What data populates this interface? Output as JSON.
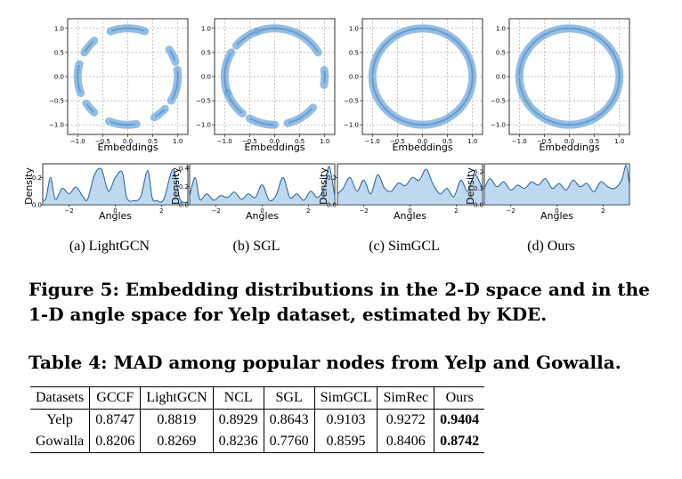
{
  "figure": {
    "caption": "Figure 5: Embedding distributions in the 2-D space and in the 1-D angle space for Yelp dataset, estimated by KDE.",
    "scatter_xlabel": "Embeddings",
    "density_xlabel": "Angles",
    "density_ylabel": "Density",
    "scatter_xticks": [
      "−1.0",
      "−0.5",
      "0.0",
      "0.5",
      "1.0"
    ],
    "scatter_yticks": [
      "1.0",
      "0.5",
      "0.0",
      "−0.5",
      "−1.0"
    ],
    "density_xticks": [
      "−2",
      "0",
      "2"
    ],
    "colors": {
      "fill": "#6fa8dc",
      "line": "#1f5f9f",
      "dense": "#1c3f6e"
    }
  },
  "chart_data": [
    {
      "type": "scatter",
      "subplot": "a",
      "caption": "(a) LightGCN",
      "xlim": [
        -1.2,
        1.2
      ],
      "ylim": [
        -1.2,
        1.2
      ],
      "arcs": [
        [
          70,
          110
        ],
        [
          18,
          34
        ],
        [
          -30,
          8
        ],
        [
          -58,
          -42
        ],
        [
          -112,
          -80
        ],
        [
          -146,
          -132
        ],
        [
          165,
          200
        ],
        [
          132,
          150
        ]
      ],
      "density_yticks": [
        "0.0",
        "0.2"
      ],
      "density_ylim": [
        0,
        0.3
      ],
      "density": [
        [
          -3.14,
          0.03
        ],
        [
          -3.0,
          0.05
        ],
        [
          -2.8,
          0.2
        ],
        [
          -2.6,
          0.04
        ],
        [
          -2.3,
          0.12
        ],
        [
          -2.0,
          0.08
        ],
        [
          -1.7,
          0.13
        ],
        [
          -1.4,
          0.06
        ],
        [
          -1.2,
          0.04
        ],
        [
          -0.9,
          0.22
        ],
        [
          -0.6,
          0.26
        ],
        [
          -0.3,
          0.1
        ],
        [
          0.0,
          0.2
        ],
        [
          0.3,
          0.24
        ],
        [
          0.5,
          0.05
        ],
        [
          0.8,
          0.03
        ],
        [
          1.1,
          0.06
        ],
        [
          1.4,
          0.25
        ],
        [
          1.6,
          0.05
        ],
        [
          1.8,
          0.03
        ],
        [
          2.1,
          0.04
        ],
        [
          2.5,
          0.26
        ],
        [
          2.8,
          0.04
        ],
        [
          3.14,
          0.02
        ]
      ]
    },
    {
      "type": "scatter",
      "subplot": "b",
      "caption": "(b) SGL",
      "xlim": [
        -1.2,
        1.2
      ],
      "ylim": [
        -1.2,
        1.2
      ],
      "arcs": [
        [
          30,
          110
        ],
        [
          -10,
          8
        ],
        [
          -75,
          -40
        ],
        [
          -120,
          -90
        ],
        [
          -160,
          -130
        ],
        [
          150,
          200
        ],
        [
          112,
          140
        ]
      ],
      "density_yticks": [
        "0.0",
        "0.2",
        "0.4"
      ],
      "density_ylim": [
        0,
        0.45
      ],
      "density": [
        [
          -3.14,
          0.1
        ],
        [
          -2.9,
          0.3
        ],
        [
          -2.7,
          0.06
        ],
        [
          -2.4,
          0.12
        ],
        [
          -2.1,
          0.05
        ],
        [
          -1.8,
          0.1
        ],
        [
          -1.5,
          0.08
        ],
        [
          -1.2,
          0.14
        ],
        [
          -0.9,
          0.06
        ],
        [
          -0.6,
          0.12
        ],
        [
          -0.3,
          0.08
        ],
        [
          0.0,
          0.22
        ],
        [
          0.3,
          0.05
        ],
        [
          0.6,
          0.1
        ],
        [
          0.9,
          0.3
        ],
        [
          1.2,
          0.08
        ],
        [
          1.5,
          0.12
        ],
        [
          1.8,
          0.05
        ],
        [
          2.1,
          0.15
        ],
        [
          2.4,
          0.08
        ],
        [
          2.7,
          0.2
        ],
        [
          2.9,
          0.42
        ],
        [
          3.14,
          0.1
        ]
      ]
    },
    {
      "type": "scatter",
      "subplot": "c",
      "caption": "(c) SimGCL",
      "xlim": [
        -1.2,
        1.2
      ],
      "ylim": [
        -1.2,
        1.2
      ],
      "arcs": [
        [
          -180,
          180
        ]
      ],
      "density_yticks": [
        "0.0",
        "0.2"
      ],
      "density_ylim": [
        0,
        0.3
      ],
      "density": [
        [
          -3.14,
          0.08
        ],
        [
          -2.9,
          0.12
        ],
        [
          -2.6,
          0.2
        ],
        [
          -2.3,
          0.1
        ],
        [
          -2.0,
          0.18
        ],
        [
          -1.7,
          0.08
        ],
        [
          -1.4,
          0.22
        ],
        [
          -1.1,
          0.12
        ],
        [
          -0.8,
          0.1
        ],
        [
          -0.5,
          0.16
        ],
        [
          -0.2,
          0.14
        ],
        [
          0.1,
          0.2
        ],
        [
          0.4,
          0.18
        ],
        [
          0.7,
          0.26
        ],
        [
          1.0,
          0.15
        ],
        [
          1.3,
          0.08
        ],
        [
          1.6,
          0.12
        ],
        [
          1.9,
          0.06
        ],
        [
          2.2,
          0.18
        ],
        [
          2.5,
          0.1
        ],
        [
          2.8,
          0.22
        ],
        [
          3.14,
          0.12
        ]
      ]
    },
    {
      "type": "scatter",
      "subplot": "d",
      "caption": "(d) Ours",
      "xlim": [
        -1.2,
        1.2
      ],
      "ylim": [
        -1.2,
        1.2
      ],
      "arcs": [
        [
          -180,
          180
        ]
      ],
      "density_yticks": [
        "0.0",
        "0.1",
        "0.2"
      ],
      "density_ylim": [
        0,
        0.25
      ],
      "density": [
        [
          -3.14,
          0.1
        ],
        [
          -2.9,
          0.16
        ],
        [
          -2.6,
          0.11
        ],
        [
          -2.3,
          0.14
        ],
        [
          -2.0,
          0.09
        ],
        [
          -1.7,
          0.12
        ],
        [
          -1.4,
          0.1
        ],
        [
          -1.1,
          0.14
        ],
        [
          -0.8,
          0.12
        ],
        [
          -0.5,
          0.16
        ],
        [
          -0.2,
          0.1
        ],
        [
          0.1,
          0.13
        ],
        [
          0.4,
          0.09
        ],
        [
          0.7,
          0.15
        ],
        [
          1.0,
          0.11
        ],
        [
          1.3,
          0.13
        ],
        [
          1.6,
          0.08
        ],
        [
          1.9,
          0.14
        ],
        [
          2.2,
          0.11
        ],
        [
          2.5,
          0.1
        ],
        [
          2.8,
          0.15
        ],
        [
          3.0,
          0.24
        ],
        [
          3.14,
          0.12
        ]
      ]
    }
  ],
  "table": {
    "caption": "Table 4: MAD among popular nodes from Yelp and Gowalla.",
    "headers": [
      "Datasets",
      "GCCF",
      "LightGCN",
      "NCL",
      "SGL",
      "SimGCL",
      "SimRec",
      "Ours"
    ],
    "rows": [
      [
        "Yelp",
        "0.8747",
        "0.8819",
        "0.8929",
        "0.8643",
        "0.9103",
        "0.9272",
        "0.9404"
      ],
      [
        "Gowalla",
        "0.8206",
        "0.8269",
        "0.8236",
        "0.7760",
        "0.8595",
        "0.8406",
        "0.8742"
      ]
    ]
  }
}
